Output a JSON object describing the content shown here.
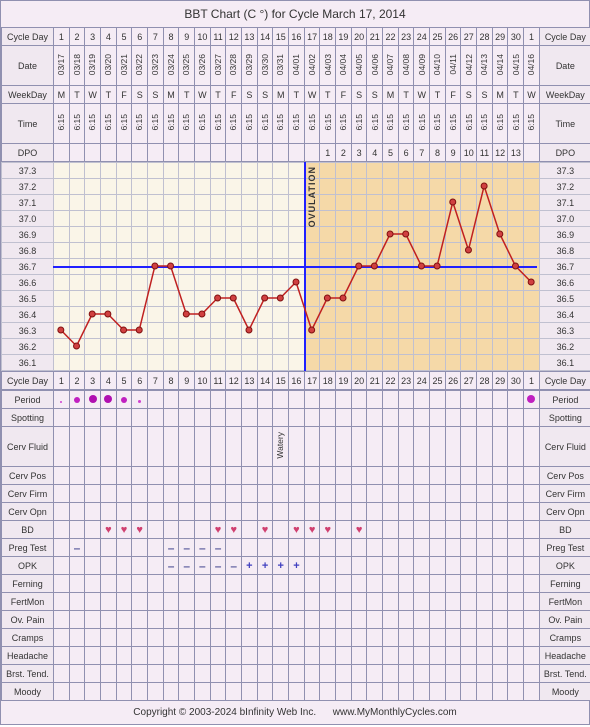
{
  "title": "BBT Chart (C °) for Cycle March 17, 2014",
  "footer_left": "Copyright © 2003-2024 bInfinity Web Inc.",
  "footer_right": "www.MyMonthlyCycles.com",
  "labels": {
    "cycleDay": "Cycle Day",
    "date": "Date",
    "weekday": "WeekDay",
    "time": "Time",
    "dpo": "DPO",
    "period": "Period",
    "spotting": "Spotting",
    "cervFluid": "Cerv Fluid",
    "cervPos": "Cerv Pos",
    "cervFirm": "Cerv Firm",
    "cervOpn": "Cerv Opn",
    "bd": "BD",
    "pregTest": "Preg Test",
    "opk": "OPK",
    "ferning": "Ferning",
    "fertMon": "FertMon",
    "ovPain": "Ov. Pain",
    "cramps": "Cramps",
    "headache": "Headache",
    "brstTend": "Brst. Tend.",
    "moody": "Moody"
  },
  "days": 31,
  "cycleDays": [
    1,
    2,
    3,
    4,
    5,
    6,
    7,
    8,
    9,
    10,
    11,
    12,
    13,
    14,
    15,
    16,
    17,
    18,
    19,
    20,
    21,
    22,
    23,
    24,
    25,
    26,
    27,
    28,
    29,
    30,
    1
  ],
  "dates": [
    "03/17",
    "03/18",
    "03/19",
    "03/20",
    "03/21",
    "03/22",
    "03/23",
    "03/24",
    "03/25",
    "03/26",
    "03/27",
    "03/28",
    "03/29",
    "03/30",
    "03/31",
    "04/01",
    "04/02",
    "04/03",
    "04/04",
    "04/05",
    "04/06",
    "04/07",
    "04/08",
    "04/09",
    "04/10",
    "04/11",
    "04/12",
    "04/13",
    "04/14",
    "04/15",
    "04/16"
  ],
  "weekdays": [
    "M",
    "T",
    "W",
    "T",
    "F",
    "S",
    "S",
    "M",
    "T",
    "W",
    "T",
    "F",
    "S",
    "S",
    "M",
    "T",
    "W",
    "T",
    "F",
    "S",
    "S",
    "M",
    "T",
    "W",
    "T",
    "F",
    "S",
    "S",
    "M",
    "T",
    "W"
  ],
  "times": [
    "6:15",
    "6:15",
    "6:15",
    "6:15",
    "6:15",
    "6:15",
    "6:15",
    "6:15",
    "6:15",
    "6:15",
    "6:15",
    "6:15",
    "6:15",
    "6:15",
    "6:15",
    "6:15",
    "6:15",
    "6:15",
    "6:15",
    "6:15",
    "6:15",
    "6:15",
    "6:15",
    "6:15",
    "6:15",
    "6:15",
    "6:15",
    "6:15",
    "6:15",
    "6:15",
    "6:15"
  ],
  "dpo": [
    "",
    "",
    "",
    "",
    "",
    "",
    "",
    "",
    "",
    "",
    "",
    "",
    "",
    "",
    "",
    "",
    "",
    "1",
    "2",
    "3",
    "4",
    "5",
    "6",
    "7",
    "8",
    "9",
    "10",
    "11",
    "12",
    "13",
    ""
  ],
  "tempScale": [
    37.3,
    37.2,
    37.1,
    37.0,
    36.9,
    36.8,
    36.7,
    36.6,
    36.5,
    36.4,
    36.3,
    36.2,
    36.1
  ],
  "temps": [
    36.3,
    36.2,
    36.4,
    36.4,
    36.3,
    36.3,
    36.7,
    36.7,
    36.4,
    36.4,
    36.5,
    36.5,
    36.3,
    36.5,
    36.5,
    36.6,
    36.3,
    36.5,
    36.5,
    36.7,
    36.7,
    36.9,
    36.9,
    36.7,
    36.7,
    37.1,
    36.8,
    37.2,
    36.9,
    36.7,
    36.6
  ],
  "coverline": 36.7,
  "ovulationDay": 17,
  "lutealStartDay": 17,
  "periodRow": [
    {
      "day": 1,
      "size": 2,
      "color": "#d040d0"
    },
    {
      "day": 2,
      "size": 6,
      "color": "#c020c0"
    },
    {
      "day": 3,
      "size": 8,
      "color": "#b010b0"
    },
    {
      "day": 4,
      "size": 8,
      "color": "#b010b0"
    },
    {
      "day": 5,
      "size": 6,
      "color": "#c020c0"
    },
    {
      "day": 6,
      "size": 3,
      "color": "#d040d0"
    },
    {
      "day": 31,
      "size": 8,
      "color": "#c020c0"
    }
  ],
  "cervFluid": {
    "15": "Watery"
  },
  "bd": [
    4,
    5,
    6,
    11,
    12,
    14,
    16,
    17,
    18,
    20
  ],
  "pregTest": {
    "2": "-",
    "8": "-",
    "9": "-",
    "10": "-",
    "11": "-"
  },
  "opk": {
    "8": "-",
    "9": "-",
    "10": "-",
    "11": "-",
    "12": "-",
    "13": "+",
    "14": "+",
    "15": "+",
    "16": "+"
  },
  "colors": {
    "bg": "#f5ecf5",
    "border": "#9090b0",
    "chartBg": "#faf5e8",
    "lutealBg": "#f5d9a8",
    "lineColor": "#c02020",
    "pointColor": "#d04040",
    "coverline": "#2020ff",
    "heart": "#d04070",
    "dashNeg": "#6060a0",
    "plusPos": "#4040c0"
  }
}
